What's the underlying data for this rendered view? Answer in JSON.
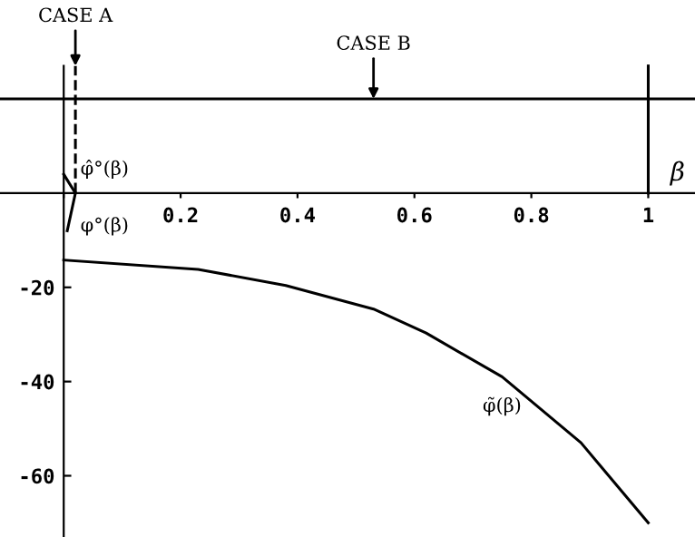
{
  "chart_data": {
    "type": "line",
    "xlabel": "β",
    "xlim": [
      -0.109,
      1.08
    ],
    "ylim": [
      -73,
      41
    ],
    "xticks": [
      {
        "value": 0,
        "label": null
      },
      0.2,
      0.4,
      0.6,
      0.8,
      1
    ],
    "yticks": [
      -20,
      -40,
      -60
    ],
    "series": [
      {
        "color": "#000000",
        "x": [
          0,
          0.23,
          0.38,
          0.53,
          0.62,
          0.75,
          0.885,
          1.0
        ],
        "values": [
          -14.2,
          -16.2,
          -19.6,
          -24.6,
          -29.7,
          -39,
          -53,
          -70
        ]
      },
      {
        "color": "#000000",
        "x": [
          0,
          0.02
        ],
        "values": [
          4,
          0
        ]
      },
      {
        "color": "#000000",
        "x": [
          0.006,
          0.02
        ],
        "values": [
          -8,
          0
        ]
      },
      {
        "color": "#000000",
        "x": [
          1,
          1
        ],
        "values": [
          0,
          27
        ]
      },
      {
        "color": "#000000",
        "x": [
          0.02,
          0.02
        ],
        "values": [
          0,
          27
        ],
        "line_style": "dashed"
      }
    ],
    "ref_lines": [
      {
        "axis": "y",
        "value": 20,
        "color": "#000000"
      }
    ],
    "annotations": [
      {
        "text": "CASE A",
        "x": 0.02,
        "y": 27
      },
      {
        "text": "CASE B",
        "x": 0.53,
        "y": 20
      },
      {
        "text": "φ̂°(β)",
        "x": 0.02,
        "y": 2
      },
      {
        "text": "φ°(β)",
        "x": 0.02,
        "y": -4
      },
      {
        "text": "φ̃(β)",
        "x": 0.75,
        "y": -39
      }
    ]
  }
}
